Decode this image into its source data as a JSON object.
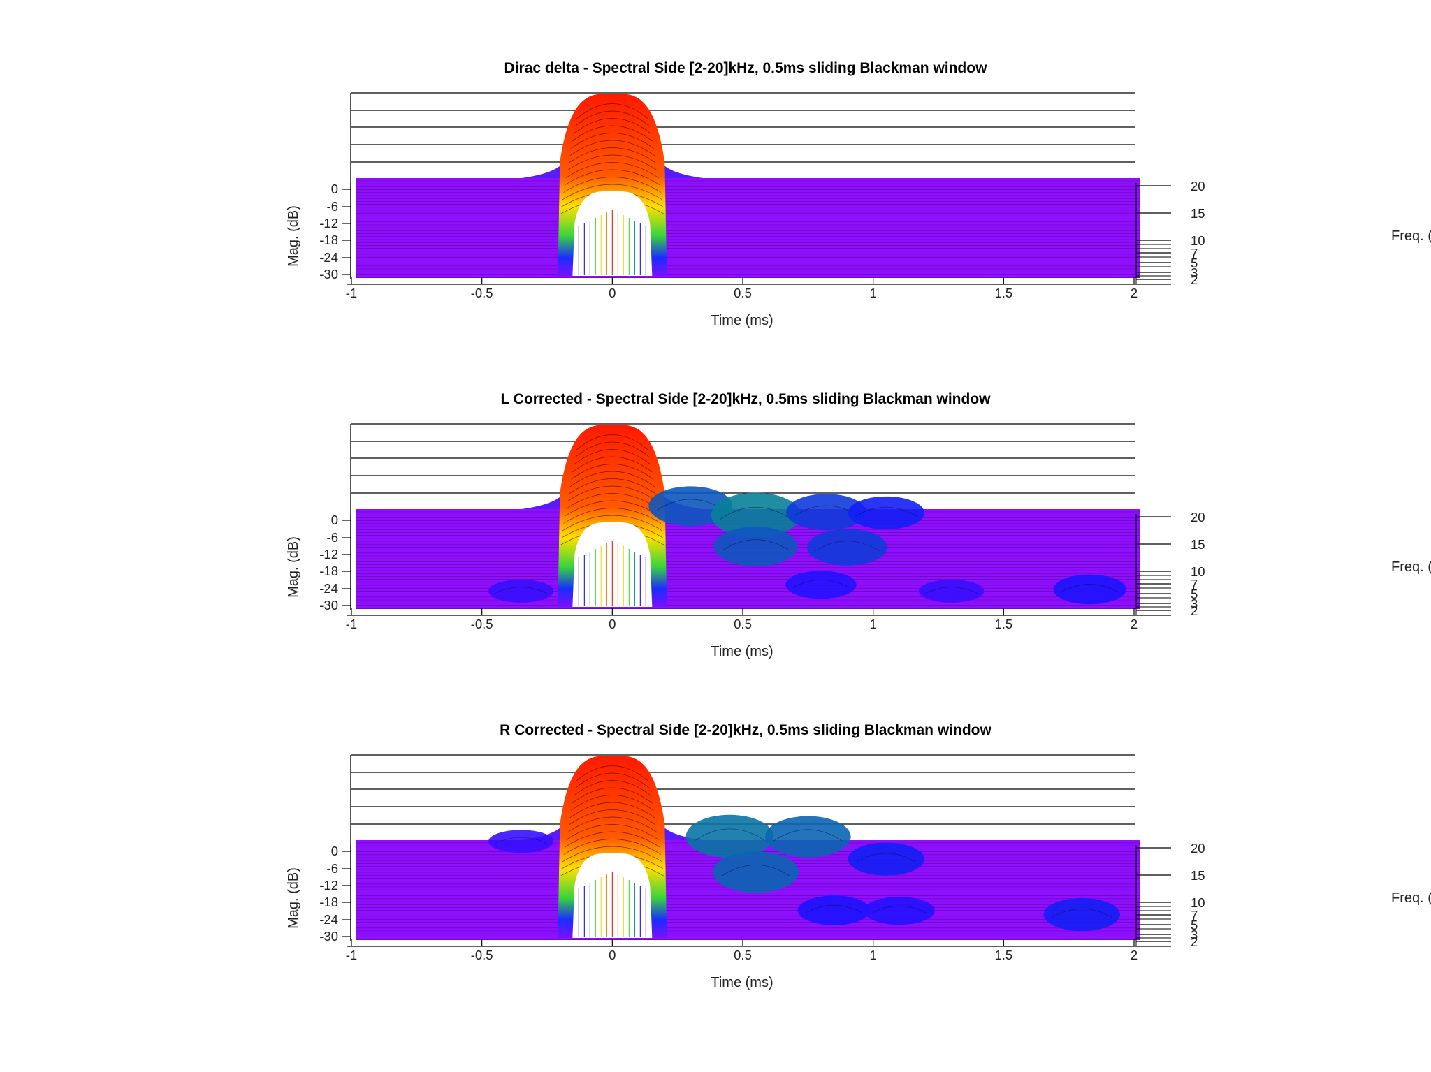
{
  "chart_data": [
    {
      "type": "waterfall-3d",
      "title": "Dirac delta - Spectral Side [2-20]kHz, 0.5ms sliding Blackman window",
      "xlabel": "Time (ms)",
      "ylabel": "Mag. (dB)",
      "zlabel": "Freq. (kHz)",
      "x_ticks": [
        "-1",
        "-0.5",
        "0",
        "0.5",
        "1",
        "1.5",
        "2"
      ],
      "y_ticks": [
        "0",
        "-6",
        "-12",
        "-18",
        "-24",
        "-30"
      ],
      "z_ticks": [
        "20",
        "15",
        "10",
        "7",
        "5",
        "3",
        "2"
      ],
      "xlim": [
        -1,
        2
      ],
      "ylim": [
        -30,
        0
      ],
      "zlim": [
        2,
        20
      ],
      "main_peak": {
        "time_ms": 0,
        "level_db": 0,
        "width_ms": 0.4
      },
      "bumps": []
    },
    {
      "type": "waterfall-3d",
      "title": "L Corrected - Spectral Side [2-20]kHz, 0.5ms sliding Blackman window",
      "xlabel": "Time (ms)",
      "ylabel": "Mag. (dB)",
      "zlabel": "Freq. (kHz)",
      "x_ticks": [
        "-1",
        "-0.5",
        "0",
        "0.5",
        "1",
        "1.5",
        "2"
      ],
      "y_ticks": [
        "0",
        "-6",
        "-12",
        "-18",
        "-24",
        "-30"
      ],
      "z_ticks": [
        "20",
        "15",
        "10",
        "7",
        "5",
        "3",
        "2"
      ],
      "xlim": [
        -1,
        2
      ],
      "ylim": [
        -30,
        0
      ],
      "zlim": [
        2,
        20
      ],
      "main_peak": {
        "time_ms": 0,
        "level_db": 0,
        "width_ms": 0.4
      },
      "bumps": [
        {
          "time_ms": 0.3,
          "freq_khz": 20,
          "level_db": -18
        },
        {
          "time_ms": 0.55,
          "freq_khz": 18,
          "level_db": -15
        },
        {
          "time_ms": 0.82,
          "freq_khz": 19,
          "level_db": -20
        },
        {
          "time_ms": 1.05,
          "freq_khz": 19,
          "level_db": -22
        },
        {
          "time_ms": 0.55,
          "freq_khz": 12,
          "level_db": -18
        },
        {
          "time_ms": 0.9,
          "freq_khz": 12,
          "level_db": -20
        },
        {
          "time_ms": 0.8,
          "freq_khz": 5,
          "level_db": -25
        },
        {
          "time_ms": -0.35,
          "freq_khz": 4,
          "level_db": -28
        },
        {
          "time_ms": 1.3,
          "freq_khz": 4,
          "level_db": -28
        },
        {
          "time_ms": 1.83,
          "freq_khz": 4,
          "level_db": -24
        }
      ]
    },
    {
      "type": "waterfall-3d",
      "title": "R Corrected - Spectral Side [2-20]kHz, 0.5ms sliding Blackman window",
      "xlabel": "Time (ms)",
      "ylabel": "Mag. (dB)",
      "zlabel": "Freq. (kHz)",
      "x_ticks": [
        "-1",
        "-0.5",
        "0",
        "0.5",
        "1",
        "1.5",
        "2"
      ],
      "y_ticks": [
        "0",
        "-6",
        "-12",
        "-18",
        "-24",
        "-30"
      ],
      "z_ticks": [
        "20",
        "15",
        "10",
        "7",
        "5",
        "3",
        "2"
      ],
      "xlim": [
        -1,
        2
      ],
      "ylim": [
        -30,
        0
      ],
      "zlim": [
        2,
        20
      ],
      "main_peak": {
        "time_ms": 0,
        "level_db": 0,
        "width_ms": 0.4
      },
      "bumps": [
        {
          "time_ms": -0.35,
          "freq_khz": 20,
          "level_db": -28
        },
        {
          "time_ms": 0.45,
          "freq_khz": 20,
          "level_db": -16
        },
        {
          "time_ms": 0.75,
          "freq_khz": 20,
          "level_db": -17
        },
        {
          "time_ms": 1.05,
          "freq_khz": 16,
          "level_db": -22
        },
        {
          "time_ms": 0.55,
          "freq_khz": 13,
          "level_db": -17
        },
        {
          "time_ms": 0.85,
          "freq_khz": 6,
          "level_db": -24
        },
        {
          "time_ms": 1.1,
          "freq_khz": 6,
          "level_db": -25
        },
        {
          "time_ms": 1.8,
          "freq_khz": 5,
          "level_db": -22
        }
      ]
    }
  ]
}
